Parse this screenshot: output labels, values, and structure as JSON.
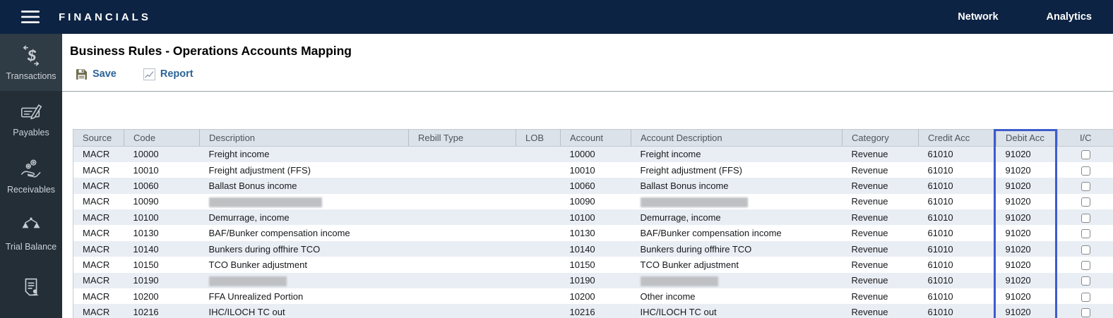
{
  "topbar": {
    "title": "FINANCIALS",
    "links": [
      {
        "label": "Network"
      },
      {
        "label": "Analytics"
      }
    ]
  },
  "sidebar": {
    "items": [
      {
        "label": "Transactions",
        "icon": "transactions-icon",
        "active": true
      },
      {
        "label": "Payables",
        "icon": "payables-icon",
        "active": false
      },
      {
        "label": "Receivables",
        "icon": "receivables-icon",
        "active": false
      },
      {
        "label": "Trial Balance",
        "icon": "trial-balance-icon",
        "active": false
      },
      {
        "label": "",
        "icon": "document-person-icon",
        "active": false
      }
    ]
  },
  "page": {
    "title": "Business Rules - Operations Accounts Mapping"
  },
  "toolbar": {
    "save_label": "Save",
    "report_label": "Report",
    "save_icon": "save-floppy-icon",
    "report_icon": "report-chart-icon"
  },
  "table": {
    "columns": [
      "Source",
      "Code",
      "Description",
      "Rebill Type",
      "LOB",
      "Account",
      "Account Description",
      "Category",
      "Credit Acc",
      "Debit Acc",
      "I/C"
    ],
    "highlighted_column": "Debit Acc",
    "rows": [
      {
        "source": "MACR",
        "code": "10000",
        "description": "Freight income",
        "rebill_type": "",
        "lob": "",
        "account": "10000",
        "account_description": "Freight income",
        "category": "Revenue",
        "credit_acc": "61010",
        "debit_acc": "91020",
        "ic_checked": false
      },
      {
        "source": "MACR",
        "code": "10010",
        "description": "Freight adjustment (FFS)",
        "rebill_type": "",
        "lob": "",
        "account": "10010",
        "account_description": "Freight adjustment (FFS)",
        "category": "Revenue",
        "credit_acc": "61010",
        "debit_acc": "91020",
        "ic_checked": false
      },
      {
        "source": "MACR",
        "code": "10060",
        "description": "Ballast Bonus income",
        "rebill_type": "",
        "lob": "",
        "account": "10060",
        "account_description": "Ballast Bonus income",
        "category": "Revenue",
        "credit_acc": "61010",
        "debit_acc": "91020",
        "ic_checked": false
      },
      {
        "source": "MACR",
        "code": "10090",
        "description": "",
        "description_redacted": 160,
        "rebill_type": "",
        "lob": "",
        "account": "10090",
        "account_description": "",
        "account_description_redacted": 152,
        "category": "Revenue",
        "credit_acc": "61010",
        "debit_acc": "91020",
        "ic_checked": false
      },
      {
        "source": "MACR",
        "code": "10100",
        "description": "Demurrage, income",
        "rebill_type": "",
        "lob": "",
        "account": "10100",
        "account_description": "Demurrage, income",
        "category": "Revenue",
        "credit_acc": "61010",
        "debit_acc": "91020",
        "ic_checked": false
      },
      {
        "source": "MACR",
        "code": "10130",
        "description": "BAF/Bunker compensation income",
        "rebill_type": "",
        "lob": "",
        "account": "10130",
        "account_description": "BAF/Bunker compensation income",
        "category": "Revenue",
        "credit_acc": "61010",
        "debit_acc": "91020",
        "ic_checked": false
      },
      {
        "source": "MACR",
        "code": "10140",
        "description": "Bunkers during offhire TCO",
        "rebill_type": "",
        "lob": "",
        "account": "10140",
        "account_description": "Bunkers during offhire TCO",
        "category": "Revenue",
        "credit_acc": "61010",
        "debit_acc": "91020",
        "ic_checked": false
      },
      {
        "source": "MACR",
        "code": "10150",
        "description": "TCO Bunker adjustment",
        "rebill_type": "",
        "lob": "",
        "account": "10150",
        "account_description": "TCO Bunker adjustment",
        "category": "Revenue",
        "credit_acc": "61010",
        "debit_acc": "91020",
        "ic_checked": false
      },
      {
        "source": "MACR",
        "code": "10190",
        "description": "",
        "description_redacted": 110,
        "rebill_type": "",
        "lob": "",
        "account": "10190",
        "account_description": "",
        "account_description_redacted": 110,
        "category": "Revenue",
        "credit_acc": "61010",
        "debit_acc": "91020",
        "ic_checked": false
      },
      {
        "source": "MACR",
        "code": "10200",
        "description": "FFA Unrealized Portion",
        "rebill_type": "",
        "lob": "",
        "account": "10200",
        "account_description": "Other income",
        "category": "Revenue",
        "credit_acc": "61010",
        "debit_acc": "91020",
        "ic_checked": false
      },
      {
        "source": "MACR",
        "code": "10216",
        "description": "IHC/ILOCH TC out",
        "rebill_type": "",
        "lob": "",
        "account": "10216",
        "account_description": "IHC/ILOCH TC out",
        "category": "Revenue",
        "credit_acc": "61010",
        "debit_acc": "91020",
        "ic_checked": false
      }
    ]
  },
  "colors": {
    "topbar_bg": "#0d2343",
    "sidebar_bg": "#232e37",
    "sidebar_active_bg": "#2f3b45",
    "toolbar_link": "#2a6496",
    "header_bg": "#dce2e9",
    "zebra_row": "#e9eef4",
    "highlight_border": "#3d5ccc"
  }
}
